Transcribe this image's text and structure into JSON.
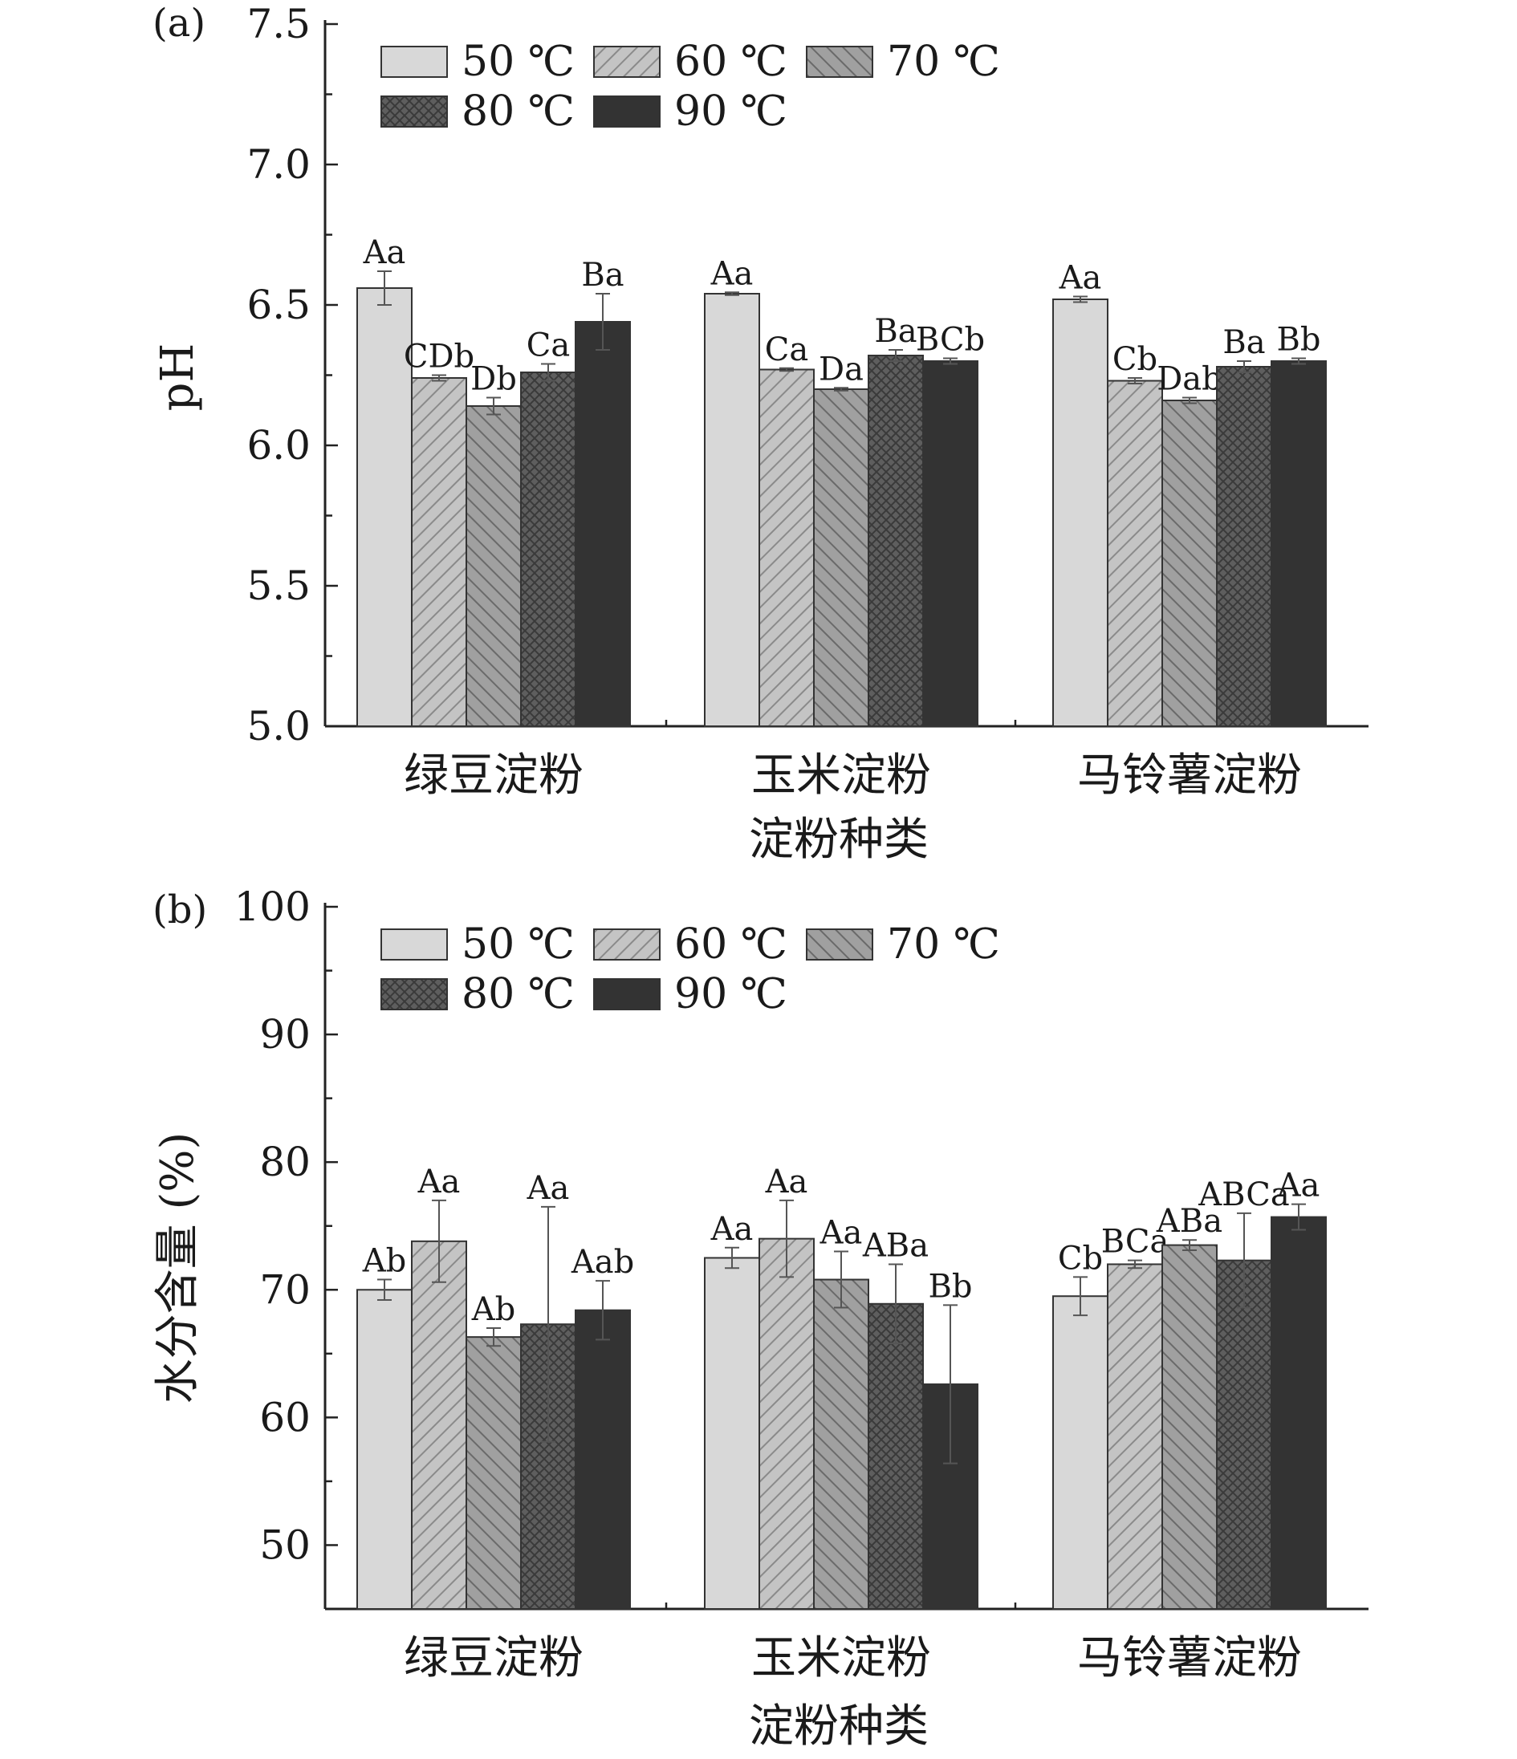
{
  "legend": {
    "entries": [
      "50 ℃",
      "60 ℃",
      "70 ℃",
      "80 ℃",
      "90 ℃"
    ]
  },
  "series_colors": [
    "#d8d8d8",
    "#bdbdbd",
    "#9a9a9a",
    "#5e5e5e",
    "#333333"
  ],
  "series_patterns": [
    "solid",
    "hatch-forward",
    "hatch-back",
    "crosshatch",
    "solid"
  ],
  "chart_data": [
    {
      "type": "bar",
      "panel_label": "(a)",
      "categories": [
        "绿豆淀粉",
        "玉米淀粉",
        "马铃薯淀粉"
      ],
      "xlabel": "淀粉种类",
      "ylabel": "pH",
      "ylim": [
        5.0,
        7.5
      ],
      "yticks": [
        5.0,
        5.5,
        6.0,
        6.5,
        7.0,
        7.5
      ],
      "ytick_labels": [
        "5.0",
        "5.5",
        "6.0",
        "6.5",
        "7.0",
        "7.5"
      ],
      "legend_position": "top-left",
      "series": [
        {
          "name": "50 ℃",
          "values": [
            6.56,
            6.54,
            6.52
          ],
          "errors": [
            0.06,
            0.005,
            0.01
          ],
          "labels": [
            "Aa",
            "Aa",
            "Aa"
          ]
        },
        {
          "name": "60 ℃",
          "values": [
            6.24,
            6.27,
            6.23
          ],
          "errors": [
            0.01,
            0.005,
            0.01
          ],
          "labels": [
            "CDb",
            "Ca",
            "Cb"
          ]
        },
        {
          "name": "70 ℃",
          "values": [
            6.14,
            6.2,
            6.16
          ],
          "errors": [
            0.03,
            0.005,
            0.01
          ],
          "labels": [
            "Db",
            "Da",
            "Dab"
          ]
        },
        {
          "name": "80 ℃",
          "values": [
            6.26,
            6.32,
            6.28
          ],
          "errors": [
            0.03,
            0.02,
            0.02
          ],
          "labels": [
            "Ca",
            "Ba",
            "Ba"
          ]
        },
        {
          "name": "90 ℃",
          "values": [
            6.44,
            6.3,
            6.3
          ],
          "errors": [
            0.1,
            0.01,
            0.01
          ],
          "labels": [
            "Ba",
            "BCb",
            "Bb"
          ]
        }
      ]
    },
    {
      "type": "bar",
      "panel_label": "(b)",
      "categories": [
        "绿豆淀粉",
        "玉米淀粉",
        "马铃薯淀粉"
      ],
      "xlabel": "淀粉种类",
      "ylabel": "水分含量 (%)",
      "ylim": [
        45,
        100
      ],
      "yticks": [
        50,
        60,
        70,
        80,
        90,
        100
      ],
      "ytick_labels": [
        "50",
        "60",
        "70",
        "80",
        "90",
        "100"
      ],
      "legend_position": "top-left",
      "series": [
        {
          "name": "50 ℃",
          "values": [
            70.0,
            72.5,
            69.5
          ],
          "errors": [
            0.8,
            0.8,
            1.5
          ],
          "labels": [
            "Ab",
            "Aa",
            "Cb"
          ]
        },
        {
          "name": "60 ℃",
          "values": [
            73.8,
            74.0,
            72.0
          ],
          "errors": [
            3.2,
            3.0,
            0.3
          ],
          "labels": [
            "Aa",
            "Aa",
            "BCa"
          ]
        },
        {
          "name": "70 ℃",
          "values": [
            66.3,
            70.8,
            73.5
          ],
          "errors": [
            0.7,
            2.2,
            0.4
          ],
          "labels": [
            "Ab",
            "Aa",
            "ABa"
          ]
        },
        {
          "name": "80 ℃",
          "values": [
            67.3,
            68.9,
            72.3
          ],
          "errors": [
            9.2,
            3.1,
            3.7
          ],
          "labels": [
            "Aa",
            "ABa",
            "ABCa"
          ]
        },
        {
          "name": "90 ℃",
          "values": [
            68.4,
            62.6,
            75.7
          ],
          "errors": [
            2.3,
            6.2,
            1.0
          ],
          "labels": [
            "Aab",
            "Bb",
            "Aa"
          ]
        }
      ]
    }
  ]
}
